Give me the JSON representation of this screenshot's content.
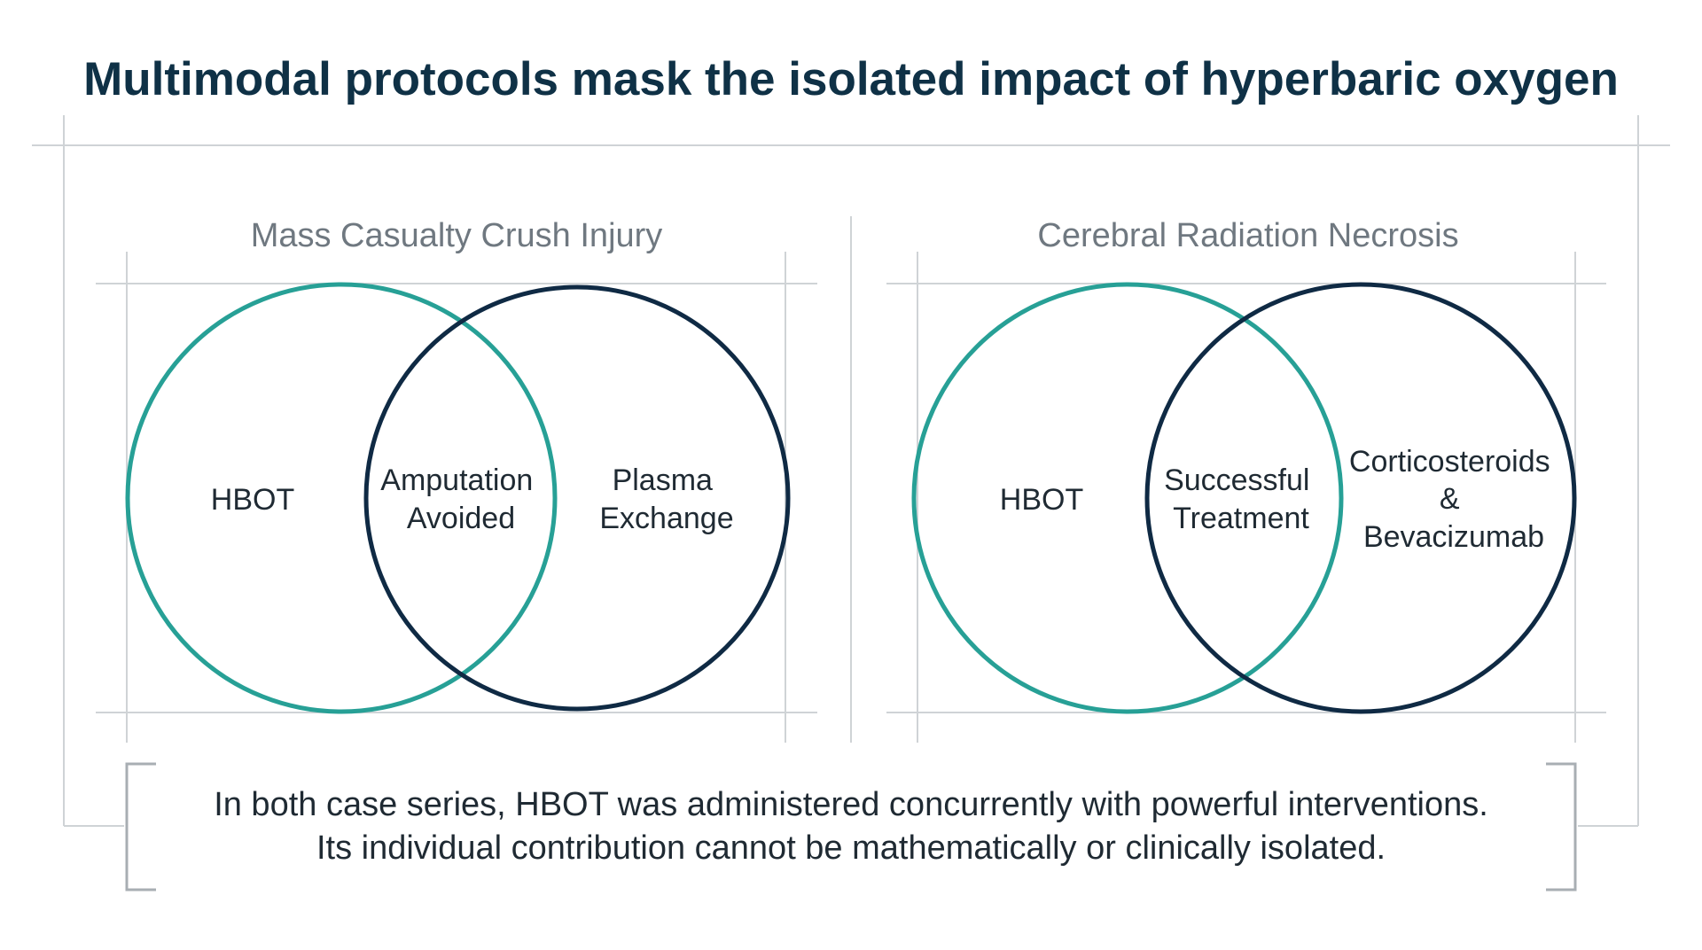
{
  "title": "Multimodal protocols mask the isolated impact of hyperbaric oxygen",
  "colors": {
    "teal": "#27a096",
    "navy": "#0f2a44",
    "title": "#0f3146",
    "panel_title": "#6f7880",
    "text": "#1f2a33",
    "frame": "#cfd3d6",
    "bracket": "#a8aeb3"
  },
  "panels": [
    {
      "title": "Mass Casualty Crush Injury",
      "left_set": [
        "HBOT"
      ],
      "intersection": [
        "Amputation",
        "Avoided"
      ],
      "right_set": [
        "Plasma",
        "Exchange"
      ]
    },
    {
      "title": "Cerebral Radiation Necrosis",
      "left_set": [
        "HBOT"
      ],
      "intersection": [
        "Successful",
        "Treatment"
      ],
      "right_set": [
        "Corticosteroids",
        "&",
        "Bevacizumab"
      ]
    }
  ],
  "caption": {
    "line1": "In both case series, HBOT was administered concurrently with powerful interventions.",
    "line2": "Its individual contribution cannot be mathematically or clinically isolated."
  }
}
